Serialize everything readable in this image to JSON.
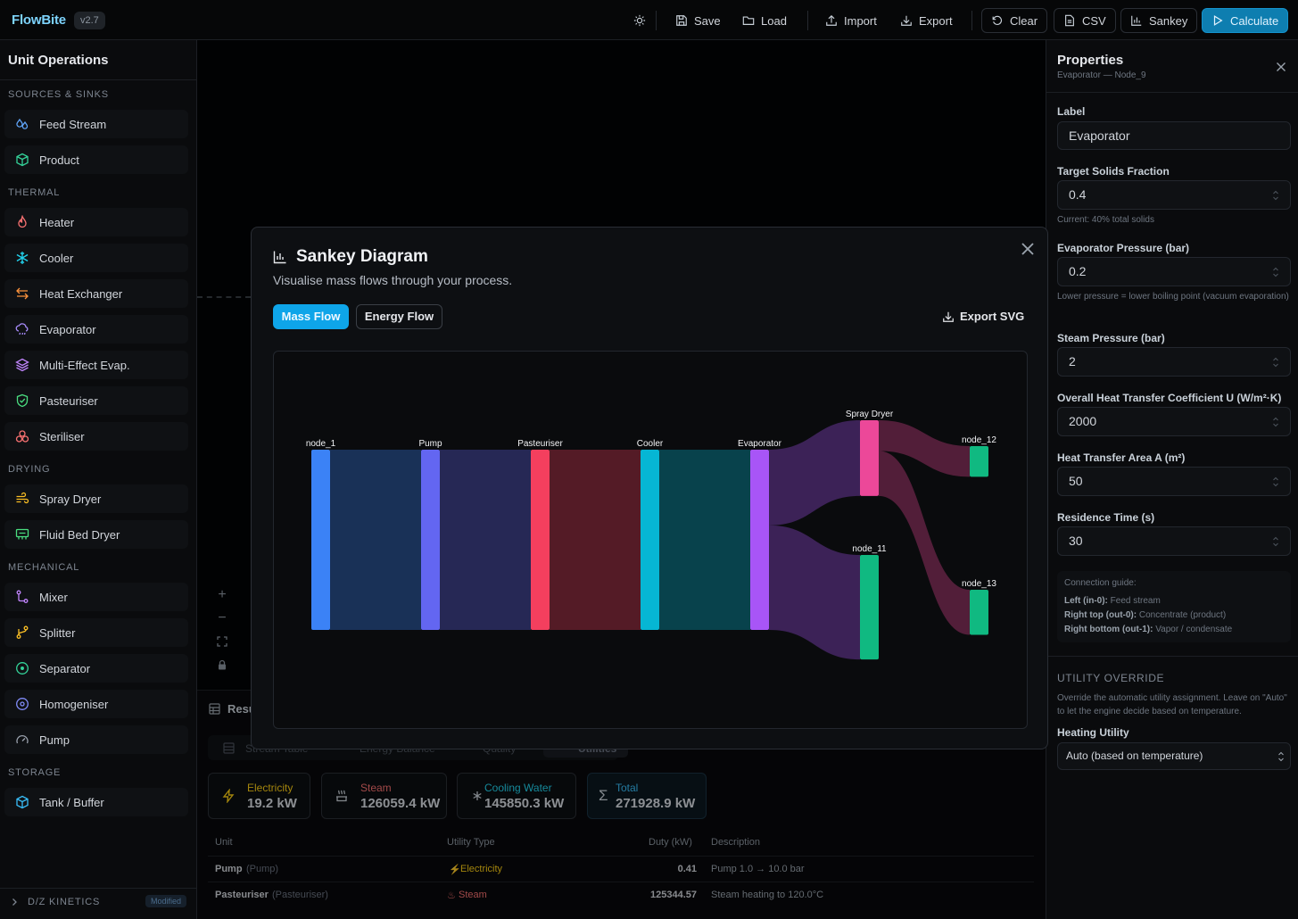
{
  "app": {
    "name": "FlowBite",
    "version": "v2.7"
  },
  "toolbar": {
    "theme_icon": "sun-icon",
    "save": "Save",
    "load": "Load",
    "import": "Import",
    "export": "Export",
    "clear": "Clear",
    "csv": "CSV",
    "sankey": "Sankey",
    "calculate": "Calculate"
  },
  "sidebar": {
    "title": "Unit Operations",
    "sections": [
      {
        "label": "SOURCES & SINKS",
        "items": [
          {
            "label": "Feed Stream",
            "icon": "droplets-icon",
            "color": "#60a5fa"
          },
          {
            "label": "Product",
            "icon": "package-icon",
            "color": "#34d399"
          }
        ]
      },
      {
        "label": "THERMAL",
        "items": [
          {
            "label": "Heater",
            "icon": "flame-icon",
            "color": "#f87171"
          },
          {
            "label": "Cooler",
            "icon": "snowflake-icon",
            "color": "#22d3ee"
          },
          {
            "label": "Heat Exchanger",
            "icon": "arrows-exchange-icon",
            "color": "#fb923c"
          },
          {
            "label": "Evaporator",
            "icon": "cloud-rain-icon",
            "color": "#a78bfa"
          },
          {
            "label": "Multi-Effect Evap.",
            "icon": "layers-icon",
            "color": "#c084fc"
          },
          {
            "label": "Pasteuriser",
            "icon": "shield-icon",
            "color": "#4ade80"
          },
          {
            "label": "Steriliser",
            "icon": "biohazard-icon",
            "color": "#f87171"
          }
        ]
      },
      {
        "label": "DRYING",
        "items": [
          {
            "label": "Spray Dryer",
            "icon": "wind-icon",
            "color": "#fbbf24"
          },
          {
            "label": "Fluid Bed Dryer",
            "icon": "heater-icon",
            "color": "#4ade80"
          }
        ]
      },
      {
        "label": "MECHANICAL",
        "items": [
          {
            "label": "Mixer",
            "icon": "merge-icon",
            "color": "#c084fc"
          },
          {
            "label": "Splitter",
            "icon": "split-icon",
            "color": "#fbbf24"
          },
          {
            "label": "Separator",
            "icon": "target-icon",
            "color": "#34d399"
          },
          {
            "label": "Homogeniser",
            "icon": "disc-icon",
            "color": "#818cf8"
          },
          {
            "label": "Pump",
            "icon": "gauge-icon",
            "color": "#9ca3af"
          }
        ]
      },
      {
        "label": "STORAGE",
        "items": [
          {
            "label": "Tank / Buffer",
            "icon": "cylinder-icon",
            "color": "#38bdf8"
          }
        ]
      }
    ],
    "footer": {
      "label": "D/Z KINETICS",
      "badge": "Modified"
    }
  },
  "results": {
    "title": "Resu",
    "tabs": [
      "Stream Table",
      "Energy Balance",
      "Quality",
      "Utilities"
    ],
    "cards": [
      {
        "label": "Electricity",
        "value": "19.2 kW",
        "icon": "zap-icon",
        "color": "#facc15"
      },
      {
        "label": "Steam",
        "value": "126059.4 kW",
        "icon": "steam-icon",
        "color": "#f87171"
      },
      {
        "label": "Cooling Water",
        "value": "145850.3 kW",
        "icon": "snowflake-icon",
        "color": "#22d3ee"
      },
      {
        "label": "Total",
        "value": "271928.9 kW",
        "icon": "sigma-icon",
        "color": "#38bdf8"
      }
    ],
    "columns": [
      "Unit",
      "Utility Type",
      "Duty (kW)",
      "Description"
    ],
    "rows": [
      {
        "unit": "Pump",
        "type_label": "(Pump)",
        "utility": "Electricity",
        "utility_color": "#facc15",
        "duty": "0.41",
        "desc": "Pump 1.0 → 10.0 bar"
      },
      {
        "unit": "Pasteuriser",
        "type_label": "(Pasteuriser)",
        "utility": "Steam",
        "utility_color": "#f87171",
        "duty": "125344.57",
        "desc": "Steam heating to 120.0°C"
      }
    ]
  },
  "properties": {
    "title": "Properties",
    "subtitle": "Evaporator — Node_9",
    "label_label": "Label",
    "label_value": "Evaporator",
    "tsf_label": "Target Solids Fraction",
    "tsf_value": "0.4",
    "tsf_hint": "Current: 40% total solids",
    "pressure_label": "Evaporator Pressure (bar)",
    "pressure_value": "0.2",
    "pressure_hint": "Lower pressure = lower boiling point (vacuum evaporation)",
    "steam_label": "Steam Pressure (bar)",
    "steam_value": "2",
    "u_label": "Overall Heat Transfer Coefficient U (W/m²·K)",
    "u_value": "2000",
    "area_label": "Heat Transfer Area A (m²)",
    "area_value": "50",
    "res_label": "Residence Time (s)",
    "res_value": "30",
    "guide_title": "Connection guide:",
    "guide": [
      {
        "key": "Left (in-0):",
        "text": " Feed stream"
      },
      {
        "key": "Right top (out-0):",
        "text": " Concentrate (product)"
      },
      {
        "key": "Right bottom (out-1):",
        "text": " Vapor / condensate"
      }
    ],
    "util_section": "UTILITY OVERRIDE",
    "util_hint": "Override the automatic utility assignment. Leave on \"Auto\" to let the engine decide based on temperature.",
    "heating_label": "Heating Utility",
    "heating_value": "Auto (based on temperature)"
  },
  "modal": {
    "title": "Sankey Diagram",
    "description": "Visualise mass flows through your process.",
    "tab_mass": "Mass Flow",
    "tab_energy": "Energy Flow",
    "export_svg": "Export SVG"
  },
  "chart_data": {
    "type": "sankey",
    "nodes": [
      {
        "name": "node_1",
        "color": "#3b82f6"
      },
      {
        "name": "Pump",
        "color": "#6366f1"
      },
      {
        "name": "Pasteuriser",
        "color": "#f43f5e"
      },
      {
        "name": "Cooler",
        "color": "#06b6d4"
      },
      {
        "name": "Evaporator",
        "color": "#a855f7"
      },
      {
        "name": "Spray Dryer",
        "color": "#ec4899"
      },
      {
        "name": "node_11",
        "color": "#10b981"
      },
      {
        "name": "node_12",
        "color": "#10b981"
      },
      {
        "name": "node_13",
        "color": "#10b981"
      }
    ],
    "links": [
      {
        "source": "node_1",
        "target": "Pump",
        "value": 1.0
      },
      {
        "source": "Pump",
        "target": "Pasteuriser",
        "value": 1.0
      },
      {
        "source": "Pasteuriser",
        "target": "Cooler",
        "value": 1.0
      },
      {
        "source": "Cooler",
        "target": "Evaporator",
        "value": 1.0
      },
      {
        "source": "Evaporator",
        "target": "Spray Dryer",
        "value": 0.42
      },
      {
        "source": "Evaporator",
        "target": "node_11",
        "value": 0.58
      },
      {
        "source": "Spray Dryer",
        "target": "node_12",
        "value": 0.17
      },
      {
        "source": "Spray Dryer",
        "target": "node_13",
        "value": 0.25
      }
    ]
  }
}
